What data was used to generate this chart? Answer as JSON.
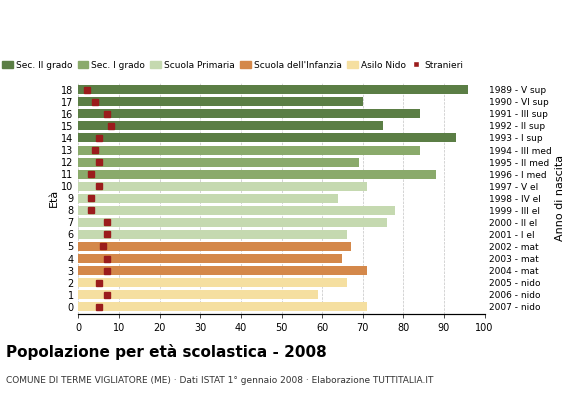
{
  "ages": [
    18,
    17,
    16,
    15,
    14,
    13,
    12,
    11,
    10,
    9,
    8,
    7,
    6,
    5,
    4,
    3,
    2,
    1,
    0
  ],
  "anno_nascita": [
    "1989 - V sup",
    "1990 - VI sup",
    "1991 - III sup",
    "1992 - II sup",
    "1993 - I sup",
    "1994 - III med",
    "1995 - II med",
    "1996 - I med",
    "1997 - V el",
    "1998 - IV el",
    "1999 - III el",
    "2000 - II el",
    "2001 - I el",
    "2002 - mat",
    "2003 - mat",
    "2004 - mat",
    "2005 - nido",
    "2006 - nido",
    "2007 - nido"
  ],
  "bar_values": [
    96,
    70,
    84,
    75,
    93,
    84,
    69,
    88,
    71,
    64,
    78,
    76,
    66,
    67,
    65,
    71,
    66,
    59,
    71
  ],
  "stranieri": [
    2,
    4,
    7,
    8,
    5,
    4,
    5,
    3,
    5,
    3,
    3,
    7,
    7,
    6,
    7,
    7,
    5,
    7,
    5
  ],
  "categories": {
    "sec2": [
      18,
      17,
      16,
      15,
      14
    ],
    "sec1": [
      13,
      12,
      11
    ],
    "primaria": [
      10,
      9,
      8,
      7,
      6
    ],
    "infanzia": [
      5,
      4,
      3
    ],
    "nido": [
      2,
      1,
      0
    ]
  },
  "colors": {
    "sec2": "#5b7e45",
    "sec1": "#8aaa6b",
    "primaria": "#c5d9b0",
    "infanzia": "#d4884a",
    "nido": "#f5dfa0",
    "stranieri": "#9b1c1c"
  },
  "legend_labels": [
    "Sec. II grado",
    "Sec. I grado",
    "Scuola Primaria",
    "Scuola dell'Infanzia",
    "Asilo Nido",
    "Stranieri"
  ],
  "title": "Popolazione per età scolastica - 2008",
  "subtitle": "COMUNE DI TERME VIGLIATORE (ME) · Dati ISTAT 1° gennaio 2008 · Elaborazione TUTTITALIA.IT",
  "xlabel_eta": "Età",
  "xlabel_anno": "Anno di nascita",
  "xlim": [
    0,
    100
  ],
  "xticks": [
    0,
    10,
    20,
    30,
    40,
    50,
    60,
    70,
    80,
    90,
    100
  ],
  "bar_height": 0.75,
  "background_color": "#ffffff",
  "grid_color": "#aaaaaa"
}
